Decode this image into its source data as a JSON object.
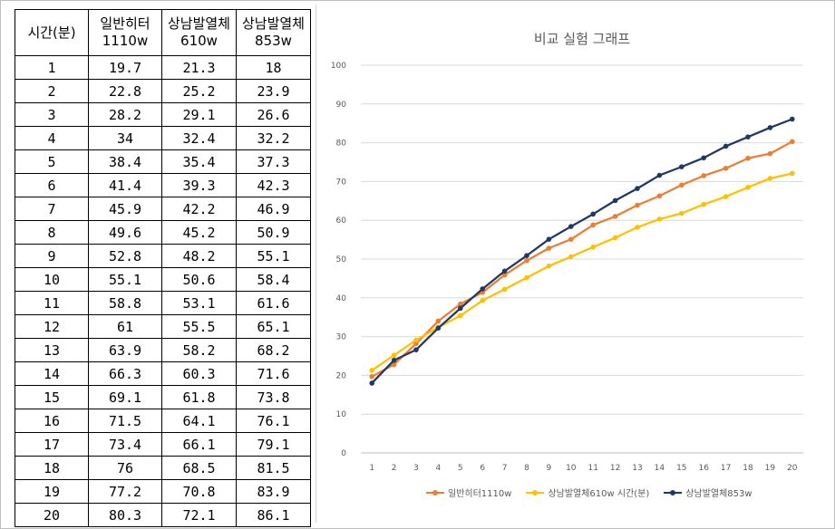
{
  "table": {
    "headers": [
      {
        "line1": "시간(분)",
        "line2": ""
      },
      {
        "line1": "일반히터",
        "line2": "1110w"
      },
      {
        "line1": "상남발열체",
        "line2": "610w"
      },
      {
        "line1": "상남발열체",
        "line2": "853w"
      }
    ],
    "rows": [
      [
        "1",
        "19.7",
        "21.3",
        "18"
      ],
      [
        "2",
        "22.8",
        "25.2",
        "23.9"
      ],
      [
        "3",
        "28.2",
        "29.1",
        "26.6"
      ],
      [
        "4",
        "34",
        "32.4",
        "32.2"
      ],
      [
        "5",
        "38.4",
        "35.4",
        "37.3"
      ],
      [
        "6",
        "41.4",
        "39.3",
        "42.3"
      ],
      [
        "7",
        "45.9",
        "42.2",
        "46.9"
      ],
      [
        "8",
        "49.6",
        "45.2",
        "50.9"
      ],
      [
        "9",
        "52.8",
        "48.2",
        "55.1"
      ],
      [
        "10",
        "55.1",
        "50.6",
        "58.4"
      ],
      [
        "11",
        "58.8",
        "53.1",
        "61.6"
      ],
      [
        "12",
        "61",
        "55.5",
        "65.1"
      ],
      [
        "13",
        "63.9",
        "58.2",
        "68.2"
      ],
      [
        "14",
        "66.3",
        "60.3",
        "71.6"
      ],
      [
        "15",
        "69.1",
        "61.8",
        "73.8"
      ],
      [
        "16",
        "71.5",
        "64.1",
        "76.1"
      ],
      [
        "17",
        "73.4",
        "66.1",
        "79.1"
      ],
      [
        "18",
        "76",
        "68.5",
        "81.5"
      ],
      [
        "19",
        "77.2",
        "70.8",
        "83.9"
      ],
      [
        "20",
        "80.3",
        "72.1",
        "86.1"
      ]
    ]
  },
  "chart_data": {
    "type": "line",
    "title": "비교 실험 그래프",
    "xlabel": "",
    "ylabel": "",
    "x": [
      1,
      2,
      3,
      4,
      5,
      6,
      7,
      8,
      9,
      10,
      11,
      12,
      13,
      14,
      15,
      16,
      17,
      18,
      19,
      20
    ],
    "ylim": [
      0,
      100
    ],
    "yticks": [
      0,
      10,
      20,
      30,
      40,
      50,
      60,
      70,
      80,
      90,
      100
    ],
    "grid": true,
    "legend_position": "bottom",
    "series": [
      {
        "name": "일반히터1110w",
        "color": "#ED7D31",
        "values": [
          19.7,
          22.8,
          28.2,
          34,
          38.4,
          41.4,
          45.9,
          49.6,
          52.8,
          55.1,
          58.8,
          61,
          63.9,
          66.3,
          69.1,
          71.5,
          73.4,
          76,
          77.2,
          80.3
        ]
      },
      {
        "name": "상남발열체610w 시간(분)",
        "color": "#FFC000",
        "values": [
          21.3,
          25.2,
          29.1,
          32.4,
          35.4,
          39.3,
          42.2,
          45.2,
          48.2,
          50.6,
          53.1,
          55.5,
          58.2,
          60.3,
          61.8,
          64.1,
          66.1,
          68.5,
          70.8,
          72.1
        ]
      },
      {
        "name": "상남발열체853w",
        "color": "#203864",
        "values": [
          18,
          23.9,
          26.6,
          32.2,
          37.3,
          42.3,
          46.9,
          50.9,
          55.1,
          58.4,
          61.6,
          65.1,
          68.2,
          71.6,
          73.8,
          76.1,
          79.1,
          81.5,
          83.9,
          86.1
        ]
      }
    ]
  }
}
